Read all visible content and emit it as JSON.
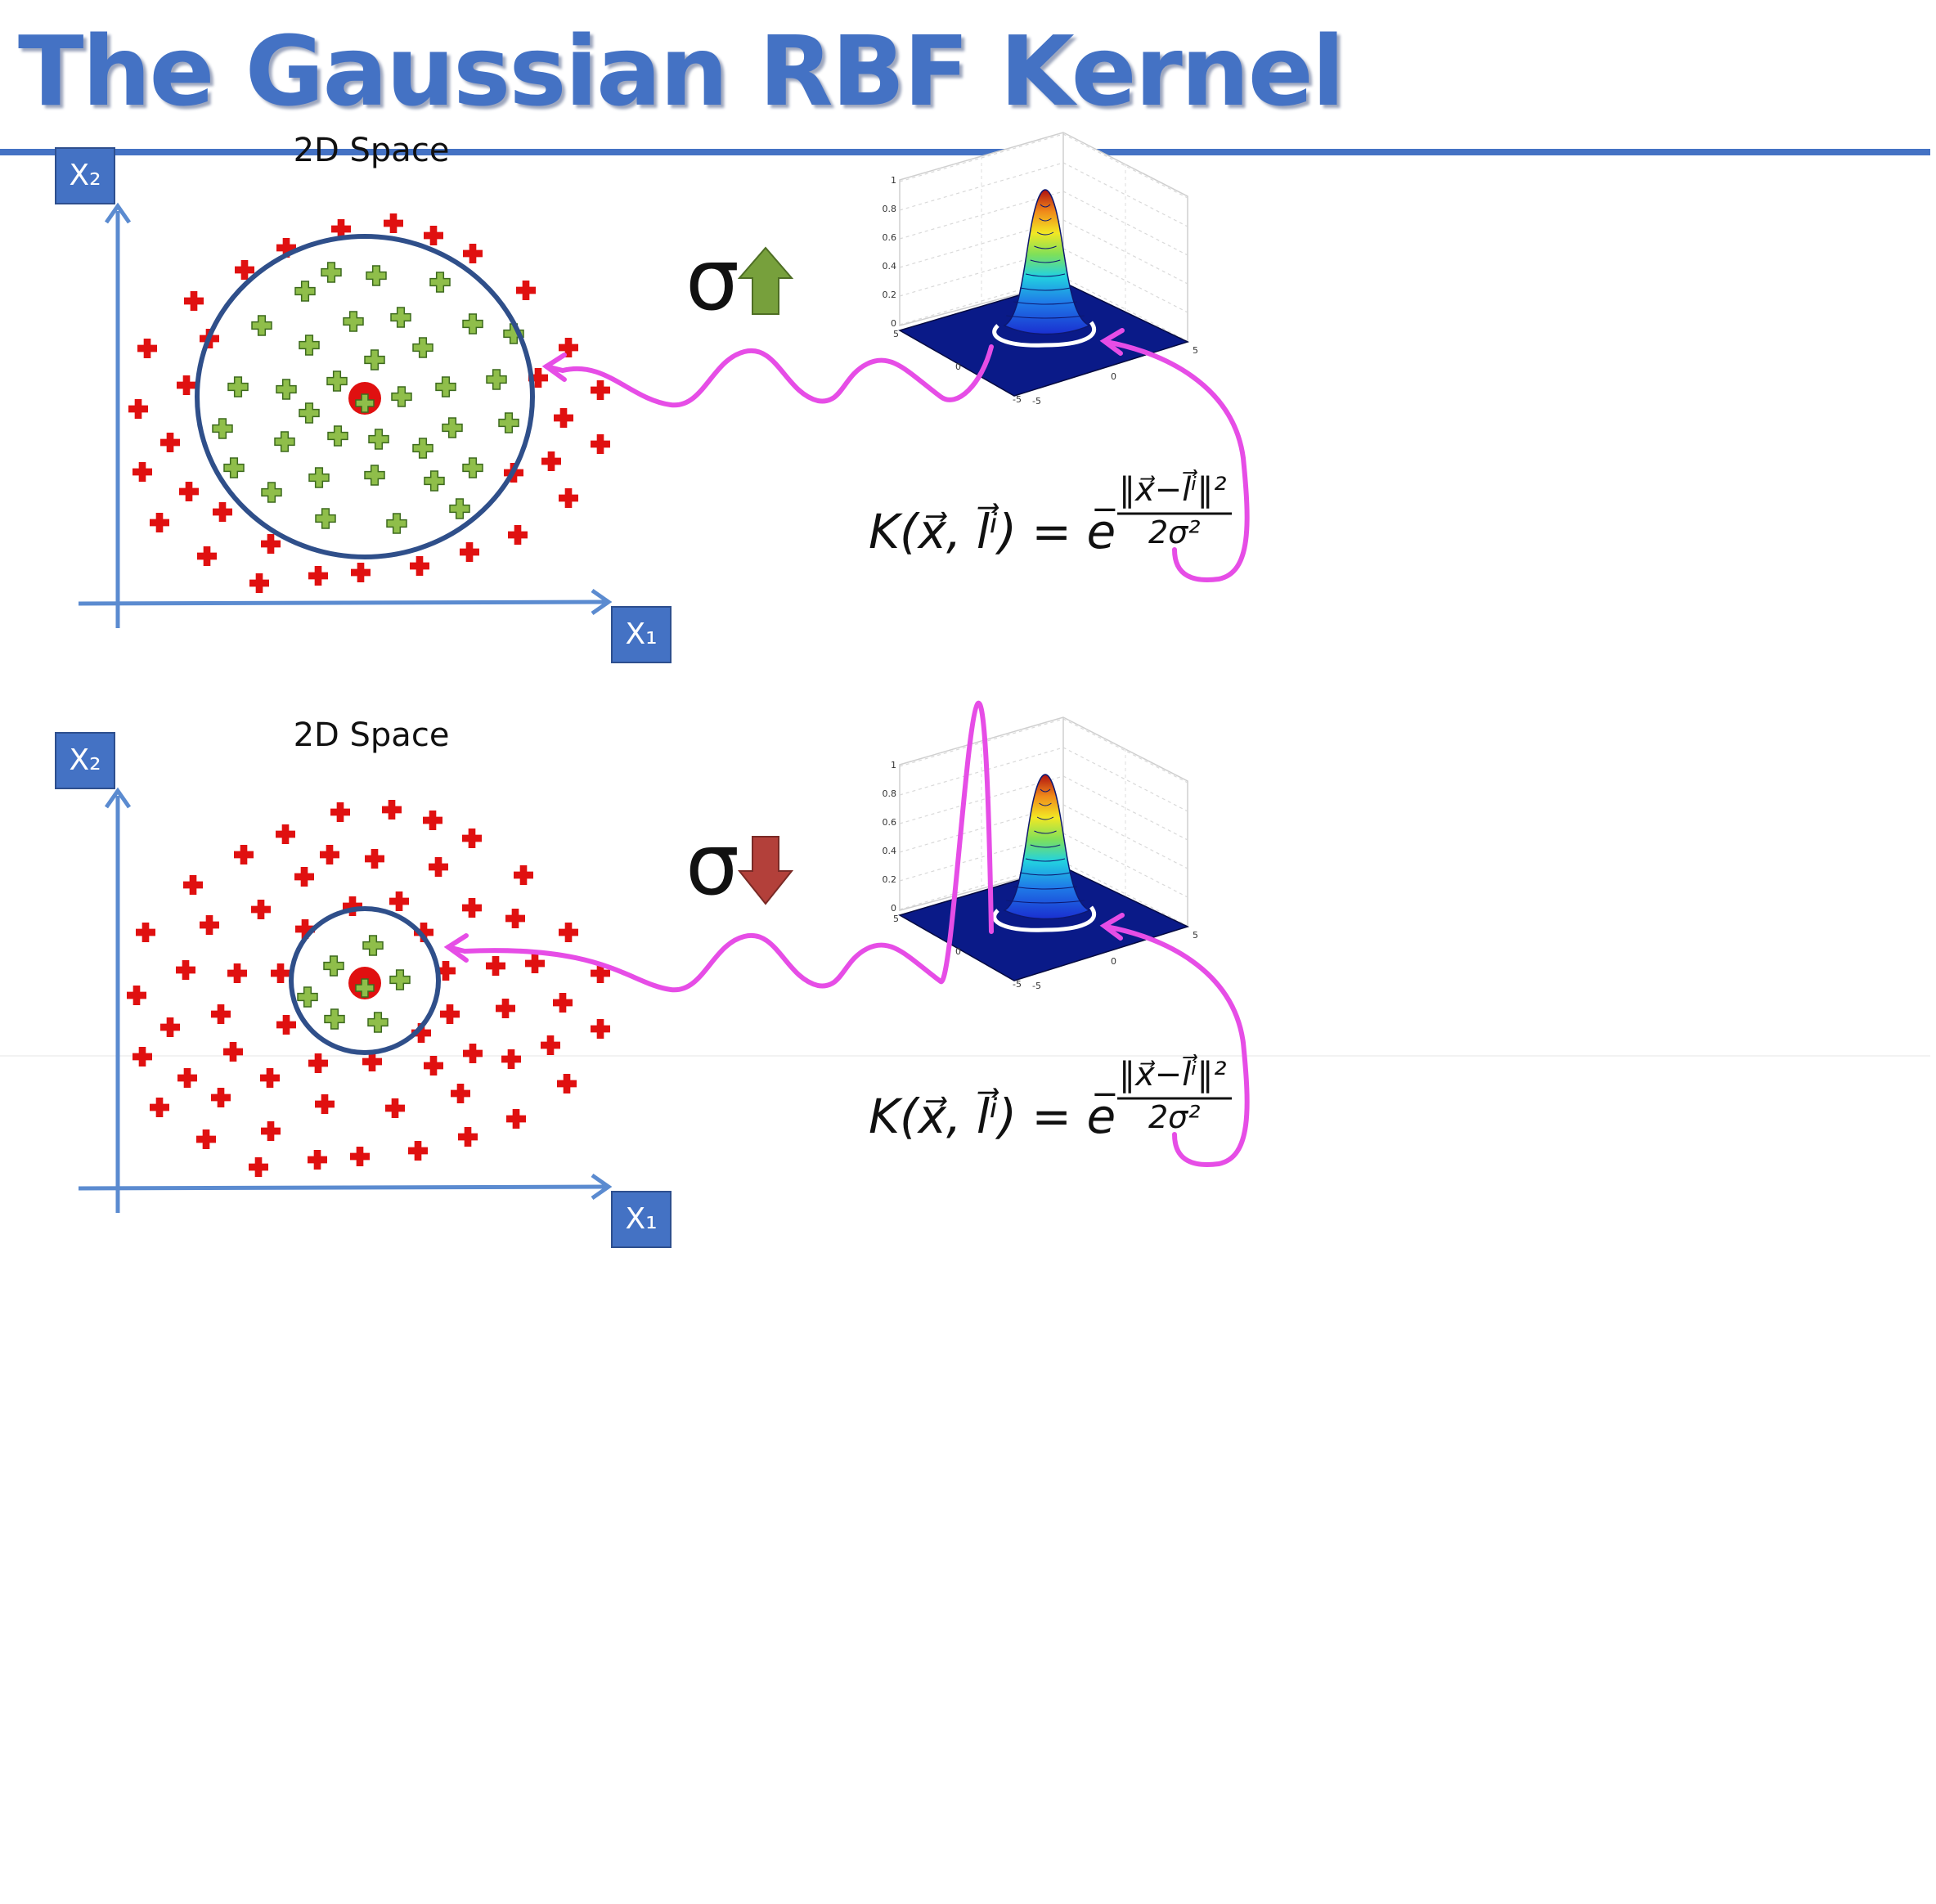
{
  "title": "The Gaussian RBF Kernel",
  "colors": {
    "title": "#4472c4",
    "axis": "#5b8bd0",
    "axis_box": "#4472c4",
    "circle": "#2f4f8a",
    "outside_point": "#e01010",
    "inside_point": "#8fbe4a",
    "landmark": "#e01010",
    "arrow_up": "#77a03c",
    "arrow_down": "#b3403a",
    "magenta": "#e64de6",
    "plot_floor": "#0a1a88"
  },
  "panels": [
    {
      "id": "top",
      "space_label": "2D Space",
      "x1_label": "X₁",
      "x2_label": "X₂",
      "sigma_symbol": "σ",
      "sigma_direction": "increase",
      "circle_size": "large",
      "formula": {
        "lhs": "K(x⃗, l⃗ⁱ) = e",
        "exp_minus": "−",
        "numerator": "‖x⃗−l⃗ⁱ‖²",
        "denominator": "2σ²"
      },
      "plot": {
        "z_ticks": [
          "1",
          "0.8",
          "0.6",
          "0.4",
          "0.2",
          "0"
        ],
        "x_ticks": [
          "5",
          "0",
          "-5"
        ],
        "y_ticks": [
          "5",
          "0",
          "-5"
        ]
      }
    },
    {
      "id": "bottom",
      "space_label": "2D Space",
      "x1_label": "X₁",
      "x2_label": "X₂",
      "sigma_symbol": "σ",
      "sigma_direction": "decrease",
      "circle_size": "small",
      "formula": {
        "lhs": "K(x⃗, l⃗ⁱ) = e",
        "exp_minus": "−",
        "numerator": "‖x⃗−l⃗ⁱ‖²",
        "denominator": "2σ²"
      },
      "plot": {
        "z_ticks": [
          "1",
          "0.8",
          "0.6",
          "0.4",
          "0.2",
          "0"
        ],
        "x_ticks": [
          "5",
          "0",
          "-5"
        ],
        "y_ticks": [
          "5",
          "0",
          "-5"
        ]
      }
    }
  ]
}
